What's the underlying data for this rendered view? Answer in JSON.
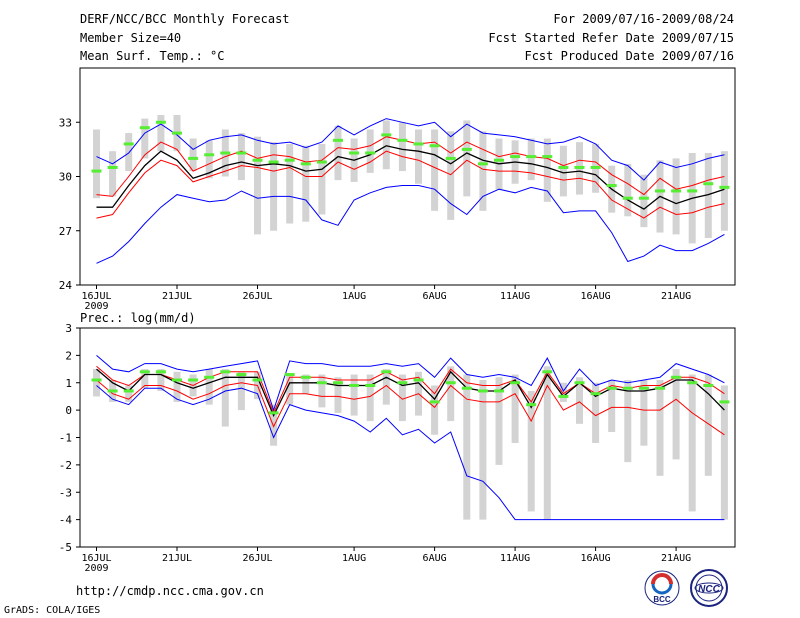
{
  "header": {
    "title": "DERF/NCC/BCC Monthly Forecast",
    "member_size": "Member Size=40",
    "period": "For 2009/07/16-2009/08/24",
    "started": "Fcst Started Refer Date 2009/07/15",
    "produced": "Fcst Produced Date 2009/07/16"
  },
  "footer": {
    "url": "http://cmdp.ncc.cma.gov.cn",
    "credit": "GrADS: COLA/IGES",
    "logo_left": "BCC",
    "logo_right": "NCC"
  },
  "colors": {
    "box": "#d3d3d3",
    "mean": "#000000",
    "spread": "#ff0000",
    "extreme": "#0000ff",
    "median": "#55ee33"
  },
  "chart_data": [
    {
      "type": "line",
      "title": "Mean Surf. Temp.: °C",
      "ylim": [
        24,
        36
      ],
      "yticks": [
        24,
        27,
        30,
        33
      ],
      "xticks": [
        {
          "day": 0,
          "label": "16JUL"
        },
        {
          "day": 5,
          "label": "21JUL"
        },
        {
          "day": 10,
          "label": "26JUL"
        },
        {
          "day": 16,
          "label": "1AUG"
        },
        {
          "day": 21,
          "label": "6AUG"
        },
        {
          "day": 26,
          "label": "11AUG"
        },
        {
          "day": 31,
          "label": "16AUG"
        },
        {
          "day": 36,
          "label": "21AUG"
        }
      ],
      "year_label": "2009",
      "x": [
        0,
        1,
        2,
        3,
        4,
        5,
        6,
        7,
        8,
        9,
        10,
        11,
        12,
        13,
        14,
        15,
        16,
        17,
        18,
        19,
        20,
        21,
        22,
        23,
        24,
        25,
        26,
        27,
        28,
        29,
        30,
        31,
        32,
        33,
        34,
        35,
        36,
        37,
        38,
        39
      ],
      "series": [
        {
          "name": "max",
          "role": "extreme",
          "values": [
            31.1,
            30.7,
            31.3,
            32.4,
            32.9,
            32.3,
            31.5,
            32.0,
            32.2,
            32.3,
            32.0,
            31.8,
            31.9,
            31.6,
            31.9,
            32.8,
            32.3,
            32.8,
            33.2,
            33.0,
            32.8,
            33.0,
            32.2,
            32.9,
            32.4,
            32.3,
            32.2,
            32.0,
            31.8,
            31.9,
            32.2,
            31.8,
            30.9,
            30.6,
            29.8,
            30.8,
            30.5,
            30.7,
            31.0,
            31.2
          ]
        },
        {
          "name": "mean+sd",
          "role": "spread",
          "values": [
            29.0,
            28.9,
            30.0,
            31.2,
            31.9,
            31.5,
            30.3,
            30.7,
            31.1,
            31.4,
            31.0,
            31.2,
            31.1,
            30.8,
            30.9,
            31.6,
            31.5,
            31.7,
            32.2,
            32.0,
            31.8,
            31.9,
            31.3,
            31.9,
            31.5,
            31.1,
            31.3,
            31.1,
            31.0,
            30.6,
            30.9,
            30.8,
            30.1,
            29.6,
            29.0,
            29.9,
            29.3,
            29.5,
            29.8,
            30.0
          ]
        },
        {
          "name": "mean",
          "role": "mean",
          "values": [
            28.3,
            28.3,
            29.5,
            30.6,
            31.4,
            30.9,
            29.9,
            30.2,
            30.6,
            30.8,
            30.6,
            30.7,
            30.6,
            30.3,
            30.4,
            31.1,
            30.9,
            31.2,
            31.7,
            31.5,
            31.4,
            31.2,
            30.7,
            31.3,
            30.9,
            30.7,
            30.8,
            30.7,
            30.5,
            30.2,
            30.3,
            30.1,
            29.3,
            28.7,
            28.2,
            28.9,
            28.5,
            28.8,
            29.0,
            29.3
          ]
        },
        {
          "name": "mean-sd",
          "role": "spread",
          "values": [
            27.7,
            27.9,
            29.1,
            30.2,
            30.9,
            30.6,
            29.7,
            30.0,
            30.3,
            30.6,
            30.5,
            30.3,
            30.5,
            30.0,
            30.0,
            30.8,
            30.4,
            30.8,
            31.4,
            31.1,
            30.9,
            30.5,
            30.1,
            30.9,
            30.4,
            30.3,
            30.3,
            30.2,
            30.0,
            29.8,
            29.9,
            29.7,
            28.7,
            28.2,
            27.7,
            28.3,
            27.9,
            28.0,
            28.3,
            28.5
          ]
        },
        {
          "name": "min",
          "role": "extreme",
          "values": [
            25.2,
            25.6,
            26.4,
            27.4,
            28.3,
            29.0,
            28.8,
            28.6,
            28.7,
            29.2,
            28.8,
            28.9,
            28.9,
            28.7,
            27.6,
            27.3,
            28.7,
            29.1,
            29.4,
            29.5,
            29.5,
            29.3,
            28.5,
            27.9,
            28.9,
            29.3,
            29.1,
            29.4,
            29.2,
            28.0,
            28.1,
            28.1,
            26.9,
            25.3,
            25.6,
            26.2,
            25.9,
            25.9,
            26.3,
            26.8
          ]
        },
        {
          "name": "median",
          "role": "median",
          "values": [
            30.3,
            30.5,
            31.8,
            32.7,
            33.0,
            32.4,
            31.0,
            31.2,
            31.3,
            31.3,
            30.9,
            30.8,
            30.9,
            30.7,
            30.8,
            32.0,
            31.3,
            31.3,
            32.3,
            32.0,
            31.8,
            31.7,
            31.0,
            31.5,
            30.7,
            30.9,
            31.1,
            31.1,
            31.1,
            30.5,
            30.5,
            30.5,
            29.5,
            28.8,
            28.8,
            29.2,
            29.2,
            29.2,
            29.6,
            29.4
          ]
        },
        {
          "name": "box-high",
          "role": "box",
          "values": [
            32.6,
            31.4,
            32.4,
            33.2,
            33.4,
            33.4,
            32.1,
            32.0,
            32.6,
            32.4,
            32.2,
            31.9,
            31.8,
            31.7,
            31.8,
            32.8,
            32.1,
            32.6,
            33.1,
            33.0,
            32.6,
            32.6,
            32.5,
            33.1,
            32.5,
            32.1,
            32.0,
            32.1,
            32.1,
            31.7,
            31.9,
            31.8,
            30.6,
            30.7,
            30.1,
            30.9,
            31.0,
            31.3,
            31.3,
            31.4
          ]
        },
        {
          "name": "box-low",
          "role": "box",
          "values": [
            28.8,
            28.9,
            30.3,
            31.0,
            31.4,
            31.4,
            30.3,
            29.9,
            30.0,
            29.8,
            26.8,
            27.0,
            27.4,
            27.5,
            27.9,
            29.8,
            29.7,
            30.2,
            30.4,
            30.3,
            29.6,
            28.1,
            27.6,
            28.9,
            28.1,
            29.3,
            29.6,
            29.8,
            28.6,
            28.9,
            29.0,
            29.1,
            28.0,
            27.8,
            27.2,
            26.9,
            26.8,
            26.3,
            26.6,
            27.0
          ]
        }
      ]
    },
    {
      "type": "line",
      "title": "Prec.: log(mm/d)",
      "ylim": [
        -5,
        3
      ],
      "yticks": [
        -5,
        -4,
        -3,
        -2,
        -1,
        0,
        1,
        2,
        3
      ],
      "xticks": [
        {
          "day": 0,
          "label": "16JUL"
        },
        {
          "day": 5,
          "label": "21JUL"
        },
        {
          "day": 10,
          "label": "26JUL"
        },
        {
          "day": 16,
          "label": "1AUG"
        },
        {
          "day": 21,
          "label": "6AUG"
        },
        {
          "day": 26,
          "label": "11AUG"
        },
        {
          "day": 31,
          "label": "16AUG"
        },
        {
          "day": 36,
          "label": "21AUG"
        }
      ],
      "year_label": "2009",
      "x": [
        0,
        1,
        2,
        3,
        4,
        5,
        6,
        7,
        8,
        9,
        10,
        11,
        12,
        13,
        14,
        15,
        16,
        17,
        18,
        19,
        20,
        21,
        22,
        23,
        24,
        25,
        26,
        27,
        28,
        29,
        30,
        31,
        32,
        33,
        34,
        35,
        36,
        37,
        38,
        39
      ],
      "series": [
        {
          "name": "max",
          "role": "extreme",
          "values": [
            2.0,
            1.5,
            1.4,
            1.7,
            1.7,
            1.5,
            1.4,
            1.5,
            1.6,
            1.7,
            1.8,
            0.0,
            1.8,
            1.7,
            1.7,
            1.6,
            1.6,
            1.6,
            1.7,
            1.6,
            1.7,
            1.2,
            1.9,
            1.3,
            1.2,
            1.3,
            1.2,
            0.9,
            1.9,
            0.7,
            1.5,
            0.9,
            1.1,
            1.0,
            1.1,
            1.2,
            1.7,
            1.5,
            1.3,
            1.0
          ]
        },
        {
          "name": "mean+sd",
          "role": "spread",
          "values": [
            1.6,
            1.1,
            0.9,
            1.3,
            1.3,
            1.1,
            0.9,
            1.2,
            1.4,
            1.4,
            1.4,
            -0.1,
            1.2,
            1.2,
            1.2,
            1.1,
            1.1,
            1.1,
            1.4,
            1.1,
            1.2,
            0.6,
            1.5,
            1.0,
            0.9,
            0.9,
            1.1,
            0.3,
            1.4,
            0.6,
            1.0,
            0.6,
            0.9,
            0.8,
            0.9,
            0.9,
            1.2,
            1.2,
            1.0,
            0.6
          ]
        },
        {
          "name": "mean",
          "role": "mean",
          "values": [
            1.5,
            1.0,
            0.7,
            1.3,
            1.3,
            1.0,
            0.8,
            1.0,
            1.2,
            1.2,
            1.2,
            -0.2,
            1.0,
            1.0,
            1.0,
            0.9,
            0.9,
            0.9,
            1.2,
            0.9,
            1.0,
            0.4,
            1.4,
            0.8,
            0.7,
            0.7,
            1.1,
            0.1,
            1.3,
            0.5,
            1.0,
            0.5,
            0.8,
            0.7,
            0.7,
            0.8,
            1.1,
            1.1,
            0.6,
            0.0
          ]
        },
        {
          "name": "mean-sd",
          "role": "spread",
          "values": [
            1.1,
            0.6,
            0.4,
            0.9,
            0.9,
            0.7,
            0.4,
            0.6,
            0.9,
            1.0,
            0.9,
            -0.6,
            0.6,
            0.6,
            0.5,
            0.5,
            0.4,
            0.5,
            0.9,
            0.4,
            0.6,
            0.1,
            0.9,
            0.4,
            0.3,
            0.3,
            0.6,
            -0.4,
            0.9,
            0.0,
            0.3,
            -0.2,
            0.1,
            0.1,
            0.0,
            0.0,
            0.4,
            -0.1,
            -0.5,
            -0.9
          ]
        },
        {
          "name": "min",
          "role": "extreme",
          "values": [
            0.9,
            0.4,
            0.2,
            0.8,
            0.8,
            0.4,
            0.2,
            0.4,
            0.7,
            0.8,
            0.6,
            -1.0,
            0.2,
            0.0,
            -0.1,
            -0.2,
            -0.4,
            -0.8,
            -0.3,
            -0.9,
            -0.7,
            -1.2,
            -0.8,
            -2.4,
            -2.6,
            -3.2,
            -4.0,
            -4.0,
            -4.0,
            -4.0,
            -4.0,
            -4.0,
            -4.0,
            -4.0,
            -4.0,
            -4.0,
            -4.0,
            -4.0,
            -4.0,
            -4.0
          ]
        },
        {
          "name": "median",
          "role": "median",
          "values": [
            1.1,
            0.7,
            0.7,
            1.4,
            1.4,
            1.1,
            1.1,
            1.2,
            1.4,
            1.3,
            1.1,
            -0.1,
            1.3,
            1.2,
            1.0,
            1.0,
            0.9,
            0.9,
            1.4,
            1.0,
            1.1,
            0.3,
            1.0,
            0.8,
            0.7,
            0.7,
            1.0,
            0.2,
            1.4,
            0.5,
            1.0,
            0.6,
            0.8,
            0.8,
            0.8,
            0.8,
            1.2,
            1.0,
            0.9,
            0.3
          ]
        },
        {
          "name": "box-high",
          "role": "box",
          "values": [
            1.5,
            1.1,
            0.9,
            1.5,
            1.5,
            1.4,
            1.3,
            1.5,
            1.5,
            1.4,
            1.4,
            0.2,
            1.3,
            1.3,
            1.3,
            1.2,
            1.3,
            1.3,
            1.5,
            1.3,
            1.4,
            0.9,
            1.6,
            1.3,
            1.1,
            1.2,
            1.3,
            0.7,
            1.6,
            1.0,
            1.2,
            1.0,
            1.1,
            1.1,
            1.1,
            1.1,
            1.5,
            1.3,
            1.3,
            0.9
          ]
        },
        {
          "name": "box-low",
          "role": "box",
          "values": [
            0.5,
            0.3,
            0.3,
            0.8,
            0.7,
            0.3,
            0.5,
            0.2,
            -0.6,
            0.0,
            0.4,
            -1.3,
            0.2,
            0.6,
            0.1,
            -0.1,
            -0.2,
            -0.4,
            0.2,
            -0.4,
            -0.2,
            -0.9,
            -0.4,
            -4.0,
            -4.0,
            -2.0,
            -1.2,
            -3.7,
            -4.0,
            0.3,
            -0.5,
            -1.2,
            -0.8,
            -1.9,
            -1.3,
            -2.4,
            -1.8,
            -3.7,
            -2.4,
            -4.0
          ]
        }
      ]
    }
  ]
}
